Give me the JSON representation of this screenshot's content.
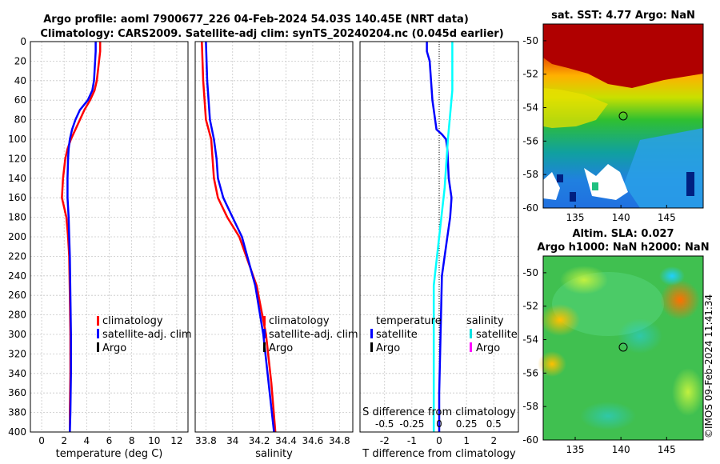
{
  "chart_data": [
    {
      "type": "line",
      "title": "Argo profile: aoml 7900677_226 04-Feb-2024 54.03S 140.45E (NRT data)",
      "subtitle": "Climatology: CARS2009. Satellite-adj clim: synTS_20240204.nc (0.045d earlier)",
      "xlabel": "temperature (deg C)",
      "ylabel": "",
      "xlim": [
        -1,
        13
      ],
      "ylim": [
        400,
        0
      ],
      "xticks": [
        "0",
        "2",
        "4",
        "6",
        "8",
        "10",
        "12"
      ],
      "yticks": [
        "0",
        "20",
        "40",
        "60",
        "80",
        "100",
        "120",
        "140",
        "160",
        "180",
        "200",
        "220",
        "240",
        "260",
        "280",
        "300",
        "320",
        "340",
        "360",
        "380",
        "400"
      ],
      "legend": [
        "climatology",
        "satellite-adj. clim",
        "Argo"
      ],
      "series": [
        {
          "name": "climatology",
          "color": "#ff0000",
          "depth": [
            0,
            10,
            20,
            40,
            50,
            60,
            70,
            80,
            90,
            100,
            110,
            120,
            140,
            160,
            170,
            180,
            200,
            220,
            260,
            300,
            340,
            380,
            400
          ],
          "values": [
            5.2,
            5.2,
            5.1,
            4.9,
            4.7,
            4.3,
            3.8,
            3.4,
            3.0,
            2.6,
            2.3,
            2.1,
            1.9,
            1.8,
            2.0,
            2.2,
            2.35,
            2.45,
            2.5,
            2.55,
            2.55,
            2.5,
            2.5
          ]
        },
        {
          "name": "satellite-adj. clim",
          "color": "#0000ff",
          "depth": [
            0,
            10,
            20,
            40,
            50,
            60,
            70,
            80,
            90,
            100,
            110,
            120,
            140,
            160,
            170,
            180,
            200,
            220,
            260,
            300,
            340,
            380,
            400
          ],
          "values": [
            4.8,
            4.8,
            4.75,
            4.65,
            4.5,
            4.1,
            3.4,
            3.0,
            2.7,
            2.5,
            2.4,
            2.35,
            2.3,
            2.3,
            2.35,
            2.4,
            2.45,
            2.5,
            2.55,
            2.6,
            2.6,
            2.55,
            2.5
          ]
        }
      ]
    },
    {
      "type": "line",
      "xlabel": "salinity",
      "xlim": [
        33.72,
        34.9
      ],
      "ylim": [
        400,
        0
      ],
      "xticks": [
        "33.8",
        "34",
        "34.2",
        "34.4",
        "34.6",
        "34.8"
      ],
      "legend": [
        "climatology",
        "satellite-adj. clim",
        "Argo"
      ],
      "series": [
        {
          "name": "climatology",
          "color": "#ff0000",
          "depth": [
            0,
            40,
            80,
            100,
            120,
            140,
            160,
            180,
            200,
            250,
            300,
            350,
            400
          ],
          "values": [
            33.77,
            33.78,
            33.8,
            33.84,
            33.85,
            33.86,
            33.89,
            33.96,
            34.05,
            34.18,
            34.25,
            34.29,
            34.32
          ]
        },
        {
          "name": "satellite-adj. clim",
          "color": "#0000ff",
          "depth": [
            0,
            40,
            80,
            100,
            120,
            140,
            160,
            180,
            200,
            250,
            300,
            350,
            400
          ],
          "values": [
            33.8,
            33.81,
            33.83,
            33.86,
            33.88,
            33.89,
            33.93,
            34.0,
            34.07,
            34.17,
            34.23,
            34.27,
            34.31
          ]
        }
      ]
    },
    {
      "type": "line",
      "xlabel": "T difference from climatology",
      "xlim": [
        -2.9,
        2.9
      ],
      "ylim": [
        400,
        0
      ],
      "xticks": [
        "-2",
        "-1",
        "0",
        "1",
        "2"
      ],
      "secondary_axis_label": "S difference from climatology",
      "secondary_xticks": [
        "-0.5",
        "-0.25",
        "0",
        "0.25",
        "0.5"
      ],
      "legend": {
        "temperature": "temperature",
        "salinity": "salinity",
        "satellite_t": "satellite",
        "argo_t": "Argo",
        "satellite_s": "satellite",
        "argo_s": "Argo"
      },
      "series": [
        {
          "name": "temperature satellite",
          "color": "#0000ff",
          "depth": [
            0,
            10,
            20,
            40,
            60,
            80,
            90,
            95,
            100,
            110,
            140,
            160,
            180,
            200,
            240,
            300,
            360,
            400
          ],
          "values": [
            -0.45,
            -0.45,
            -0.35,
            -0.3,
            -0.25,
            -0.15,
            -0.1,
            0.1,
            0.25,
            0.3,
            0.35,
            0.45,
            0.4,
            0.3,
            0.1,
            0.05,
            0.0,
            0.0
          ]
        },
        {
          "name": "salinity satellite",
          "color": "#00ffff",
          "depth": [
            0,
            50,
            100,
            150,
            200,
            250,
            300,
            350,
            400
          ],
          "values": [
            0.12,
            0.12,
            0.08,
            0.05,
            0.0,
            -0.05,
            -0.05,
            -0.05,
            -0.05
          ]
        }
      ]
    }
  ],
  "maps": {
    "sst": {
      "title": "sat. SST: 4.77  Argo: NaN",
      "xticks": [
        "135",
        "140",
        "145"
      ],
      "yticks": [
        "-50",
        "-52",
        "-54",
        "-56",
        "-58",
        "-60"
      ]
    },
    "sla": {
      "title1": "Altim. SLA: 0.027",
      "title2": "Argo h1000: NaN h2000: NaN",
      "xticks": [
        "135",
        "140",
        "145"
      ],
      "yticks": [
        "-50",
        "-52",
        "-54",
        "-56",
        "-58",
        "-60"
      ]
    }
  },
  "watermark": "©IMOS 09-Feb-2024 11:41:34"
}
